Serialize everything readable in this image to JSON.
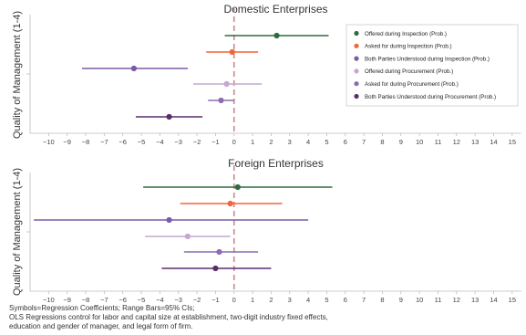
{
  "chart_data": [
    {
      "type": "forest",
      "title": "Domestic Enterprises",
      "ylabel": "Quality of Management (1-4)",
      "xlim": [
        -11,
        15.5
      ],
      "xticks": [
        -10,
        -9,
        -8,
        -7,
        -6,
        -5,
        -4,
        -3,
        -2,
        -1,
        0,
        1,
        2,
        3,
        4,
        5,
        6,
        7,
        8,
        9,
        10,
        11,
        12,
        13,
        14,
        15
      ],
      "reference_line": 0,
      "legend_position": "top-right",
      "series": [
        {
          "name": "Offered during Inspection (Prob.)",
          "color": "#2e6b3f",
          "estimate": 2.3,
          "lower": -0.5,
          "upper": 5.1
        },
        {
          "name": "Asked for during Inspection (Prob.)",
          "color": "#f0653a",
          "estimate": -0.1,
          "lower": -1.5,
          "upper": 1.3
        },
        {
          "name": "Both Parties Understood during Inspection (Prob.)",
          "color": "#7b5aa6",
          "estimate": -5.4,
          "lower": -8.2,
          "upper": -2.5
        },
        {
          "name": "Offered during Procurement (Prob.)",
          "color": "#c4a8cf",
          "estimate": -0.4,
          "lower": -2.2,
          "upper": 1.5
        },
        {
          "name": "Asked for during Procurement (Prob.)",
          "color": "#8a6daf",
          "estimate": -0.7,
          "lower": -1.4,
          "upper": 0.0
        },
        {
          "name": "Both Parties Understood during Procurement (Prob.)",
          "color": "#5a2d6b",
          "estimate": -3.5,
          "lower": -5.3,
          "upper": -1.7
        }
      ]
    },
    {
      "type": "forest",
      "title": "Foreign Enterprises",
      "ylabel": "Quality of Management (1-4)",
      "xlim": [
        -11,
        15.5
      ],
      "xticks": [
        -10,
        -9,
        -8,
        -7,
        -6,
        -5,
        -4,
        -3,
        -2,
        -1,
        0,
        1,
        2,
        3,
        4,
        5,
        6,
        7,
        8,
        9,
        10,
        11,
        12,
        13,
        14,
        15
      ],
      "reference_line": 0,
      "series": [
        {
          "name": "Offered during Inspection (Prob.)",
          "color": "#2e6b3f",
          "estimate": 0.2,
          "lower": -4.9,
          "upper": 5.3
        },
        {
          "name": "Asked for during Inspection (Prob.)",
          "color": "#f0653a",
          "estimate": -0.2,
          "lower": -2.9,
          "upper": 2.6
        },
        {
          "name": "Both Parties Understood during Inspection (Prob.)",
          "color": "#7b5aa6",
          "estimate": -3.5,
          "lower": -10.8,
          "upper": 4.0
        },
        {
          "name": "Offered during Procurement (Prob.)",
          "color": "#c4a8cf",
          "estimate": -2.5,
          "lower": -4.8,
          "upper": -0.2
        },
        {
          "name": "Asked for during Procurement (Prob.)",
          "color": "#8a6daf",
          "estimate": -0.8,
          "lower": -2.7,
          "upper": 1.3
        },
        {
          "name": "Both Parties Understood during Procurement (Prob.)",
          "color": "#5a2d6b",
          "estimate": -1.0,
          "lower": -3.9,
          "upper": 2.0
        }
      ]
    }
  ],
  "notes": [
    "Symbols=Regression Coefficients; Range Bars=95% CIs;",
    "OLS Regressions control for labor and capital size at establishment, two-digit industry fixed effects,",
    "education and gender of manager, and legal form of firm."
  ]
}
